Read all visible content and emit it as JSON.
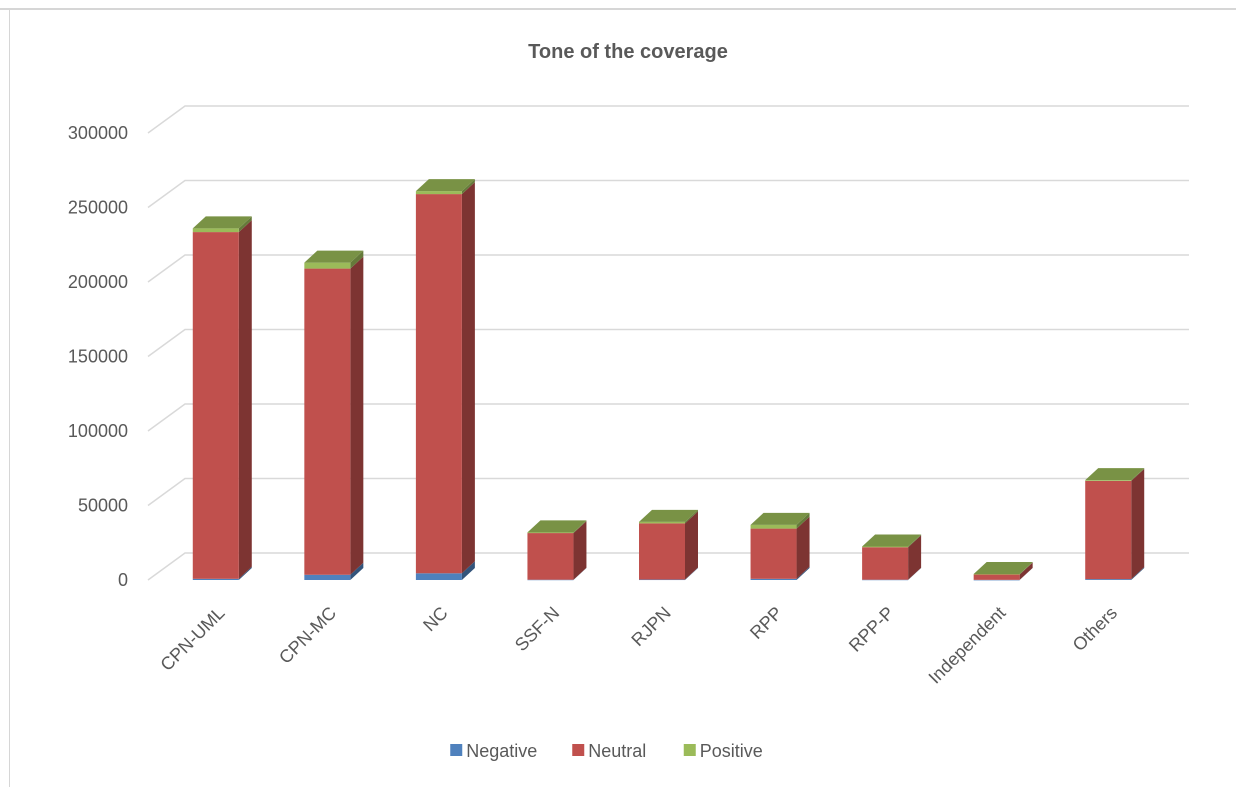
{
  "chart_data": {
    "type": "bar",
    "stacked": true,
    "style": "3d-column",
    "title": "Tone of the coverage",
    "xlabel": "",
    "ylabel": "",
    "ylim": [
      0,
      300000
    ],
    "yticks": [
      0,
      50000,
      100000,
      150000,
      200000,
      250000,
      300000
    ],
    "grid": true,
    "legend_position": "bottom",
    "categories": [
      "CPN-UML",
      "CPN-MC",
      "NC",
      "SSF-N",
      "RJPN",
      "RPP",
      "RPP-P",
      "Independent",
      "Others"
    ],
    "series": [
      {
        "name": "Negative",
        "color": "#4f81bd",
        "values": [
          800,
          3500,
          4500,
          200,
          300,
          800,
          200,
          100,
          600
        ]
      },
      {
        "name": "Neutral",
        "color": "#c0504d",
        "values": [
          232700,
          205500,
          254500,
          31300,
          37700,
          33700,
          21800,
          3600,
          65900
        ]
      },
      {
        "name": "Positive",
        "color": "#9bbb59",
        "values": [
          2500,
          4000,
          2000,
          500,
          1000,
          2500,
          500,
          300,
          500
        ]
      }
    ]
  }
}
